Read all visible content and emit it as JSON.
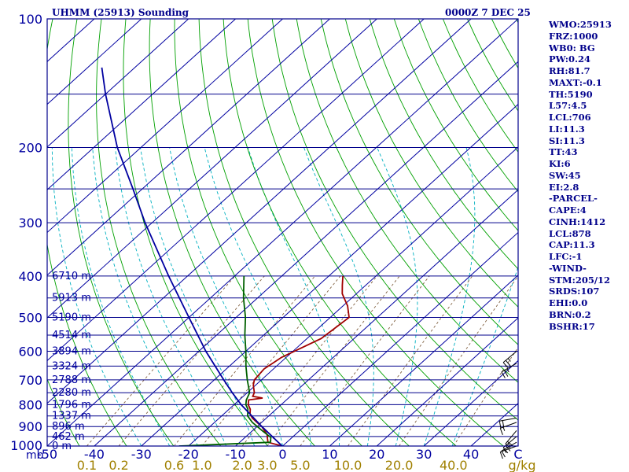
{
  "title": "UHMM (25913) Sounding",
  "timestamp": "0000Z  7 DEC 25",
  "colors": {
    "frame": "#00008b",
    "isobar": "#00008b",
    "isotherm": "#0000a0",
    "dry_adiabat": "#00a000",
    "moist_adiabat": "#00b0c0",
    "mixing_ratio": "#806040",
    "temperature": "#a00000",
    "dewpoint": "#006000",
    "parcel": "#0000a0",
    "label": "#0000a0",
    "mixing_label": "#a08000",
    "wind": "#000000"
  },
  "indices": [
    "WMO:25913",
    "FRZ:1000",
    "WB0: BG",
    "PW:0.24",
    "RH:81.7",
    "MAXT:-0.1",
    "TH:5190",
    "L57:4.5",
    "LCL:706",
    "LI:11.3",
    "SI:11.3",
    "TT:43",
    "KI:6",
    "SW:45",
    "EI:2.8",
    "-PARCEL-",
    "CAPE:4",
    "CINH:1412",
    "LCL:878",
    "CAP:11.3",
    "LFC:-1",
    "-WIND-",
    "STM:205/12",
    "SRDS:107",
    "EHI:0.0",
    "BRN:0.2",
    "BSHR:17"
  ],
  "chart_data": {
    "type": "line",
    "chart_kind": "skew-T log-P sounding",
    "xlabel": "C",
    "ylabel": "mb",
    "y_scale": "log",
    "ylim": [
      1000,
      100
    ],
    "xlim_at_bottom": [
      -50,
      50
    ],
    "x_ticks": [
      -50,
      -40,
      -30,
      -20,
      -10,
      0,
      10,
      20,
      30,
      40
    ],
    "x_tick_labels": [
      "-50",
      "-40",
      "-30",
      "-20",
      "-10",
      "0",
      "10",
      "20",
      "30",
      "40"
    ],
    "y_ticks": [
      100,
      200,
      300,
      400,
      500,
      600,
      700,
      800,
      900,
      1000
    ],
    "y_tick_labels": [
      "100",
      "200",
      "300",
      "400",
      "500",
      "600",
      "700",
      "800",
      "900",
      "1000"
    ],
    "mixing_ratio_unit": "g/kg",
    "mixing_ratios": [
      0.1,
      0.2,
      0.6,
      1.0,
      2.0,
      3.0,
      5.0,
      10.0,
      20.0,
      40.0
    ],
    "mixing_ratio_labels": [
      "0.1",
      "0.2",
      "0.6",
      "1.0",
      "2.0",
      "3.0",
      "5.0",
      "10.0",
      "20.0",
      "40.0"
    ],
    "height_labels": [
      {
        "p": 400,
        "text": "6710 m"
      },
      {
        "p": 450,
        "text": "5913 m"
      },
      {
        "p": 500,
        "text": "5190 m"
      },
      {
        "p": 550,
        "text": "4514 m"
      },
      {
        "p": 600,
        "text": "3894 m"
      },
      {
        "p": 650,
        "text": "3324 m"
      },
      {
        "p": 700,
        "text": "2788 m"
      },
      {
        "p": 750,
        "text": "2280 m"
      },
      {
        "p": 800,
        "text": "1796 m"
      },
      {
        "p": 850,
        "text": "1337 m"
      },
      {
        "p": 900,
        "text": "896 m"
      },
      {
        "p": 950,
        "text": "462 m"
      },
      {
        "p": 1000,
        "text": "0 m"
      }
    ],
    "series": [
      {
        "name": "temperature",
        "points": [
          [
            1000,
            -0.1
          ],
          [
            980,
            -4
          ],
          [
            960,
            -5
          ],
          [
            940,
            -6
          ],
          [
            920,
            -7.5
          ],
          [
            900,
            -9
          ],
          [
            880,
            -11
          ],
          [
            860,
            -13
          ],
          [
            840,
            -14.5
          ],
          [
            820,
            -15.5
          ],
          [
            800,
            -17
          ],
          [
            780,
            -18
          ],
          [
            772,
            -15.5
          ],
          [
            765,
            -18
          ],
          [
            750,
            -18.5
          ],
          [
            720,
            -20.5
          ],
          [
            700,
            -21.5
          ],
          [
            660,
            -22
          ],
          [
            620,
            -21
          ],
          [
            560,
            -17
          ],
          [
            500,
            -16
          ],
          [
            470,
            -19
          ],
          [
            440,
            -23
          ],
          [
            420,
            -25
          ],
          [
            400,
            -27
          ]
        ]
      },
      {
        "name": "dewpoint",
        "points": [
          [
            1000,
            -22
          ],
          [
            980,
            -3.5
          ],
          [
            955,
            -4.5
          ],
          [
            920,
            -8
          ],
          [
            880,
            -12
          ],
          [
            850,
            -14.5
          ],
          [
            820,
            -16
          ],
          [
            800,
            -17.5
          ],
          [
            780,
            -18.5
          ],
          [
            750,
            -19.5
          ],
          [
            700,
            -23
          ],
          [
            650,
            -26.5
          ],
          [
            600,
            -30
          ],
          [
            550,
            -34
          ],
          [
            500,
            -38
          ],
          [
            450,
            -43
          ],
          [
            400,
            -48
          ]
        ]
      },
      {
        "name": "parcel",
        "points": [
          [
            1000,
            -0.1
          ],
          [
            900,
            -9
          ],
          [
            850,
            -13.6
          ],
          [
            800,
            -18.5
          ],
          [
            750,
            -23.2
          ],
          [
            700,
            -28
          ],
          [
            600,
            -38.5
          ],
          [
            500,
            -50
          ],
          [
            400,
            -64
          ],
          [
            300,
            -81.5
          ],
          [
            250,
            -92
          ],
          [
            200,
            -105
          ],
          [
            150,
            -120
          ],
          [
            130,
            -127
          ]
        ]
      }
    ],
    "wind_barbs": [
      {
        "p": 1000,
        "spd_kt": 10,
        "dir": 250
      },
      {
        "p": 980,
        "spd_kt": 15,
        "dir": 240
      },
      {
        "p": 950,
        "spd_kt": 25,
        "dir": 230
      },
      {
        "p": 920,
        "spd_kt": 20,
        "dir": 220
      },
      {
        "p": 880,
        "spd_kt": 15,
        "dir": 250
      },
      {
        "p": 860,
        "spd_kt": 20,
        "dir": 260
      },
      {
        "p": 640,
        "spd_kt": 25,
        "dir": 240
      },
      {
        "p": 600,
        "spd_kt": 25,
        "dir": 230
      }
    ]
  }
}
